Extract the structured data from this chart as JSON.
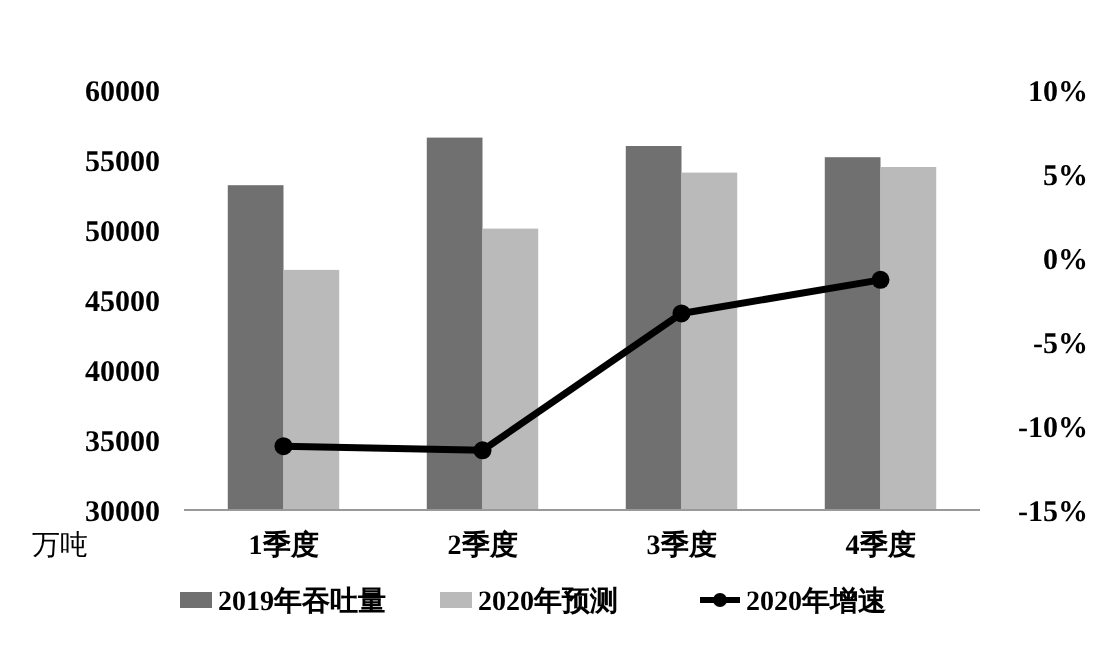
{
  "chart_data": {
    "type": "bar",
    "categories": [
      "1季度",
      "2季度",
      "3季度",
      "4季度"
    ],
    "ylabel": "万吨",
    "ylim": [
      30000,
      60000
    ],
    "yticks": [
      30000,
      35000,
      40000,
      45000,
      50000,
      55000,
      60000
    ],
    "y2lim": [
      -15,
      10
    ],
    "y2ticks": [
      {
        "value": -15,
        "label": "-15%"
      },
      {
        "value": -10,
        "label": "-10%"
      },
      {
        "value": -5,
        "label": "-5%"
      },
      {
        "value": 0,
        "label": "0%"
      },
      {
        "value": 5,
        "label": "5%"
      },
      {
        "value": 10,
        "label": "10%"
      }
    ],
    "series": [
      {
        "name": "2019年吞吐量",
        "color": "#707070",
        "values": [
          53200,
          56600,
          56000,
          55200
        ]
      },
      {
        "name": "2020年预测",
        "color": "#bababa",
        "values": [
          47150,
          50100,
          54100,
          54500
        ]
      },
      {
        "name": "2020年增速",
        "color": "#000000",
        "type": "line",
        "axis": "y2",
        "values": [
          -11.2,
          -11.45,
          -3.3,
          -1.3
        ]
      }
    ],
    "legend": "bottom",
    "marker": "circle",
    "grid": false
  }
}
